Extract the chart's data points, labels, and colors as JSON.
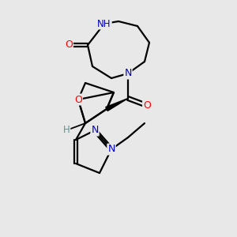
{
  "bg_color": "#e8e8e8",
  "atom_colors": {
    "C": "#000000",
    "N": "#0000cd",
    "O": "#ff0000",
    "H": "#4a9a9a"
  },
  "bond_color": "#000000",
  "bond_width": 1.6,
  "font_size_atom": 8.5
}
